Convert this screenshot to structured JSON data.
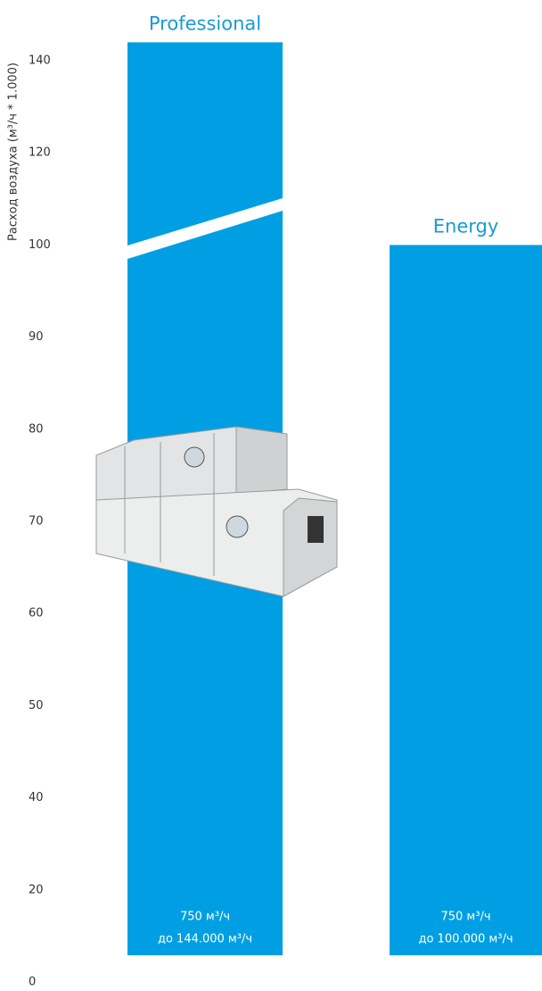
{
  "chart_data": {
    "type": "bar",
    "y_label": "Расход воздуха (м³/ч * 1.000)",
    "categories": [
      "Professional",
      "Energy"
    ],
    "values": [
      144,
      100
    ],
    "value_labels": [
      "до 144.000 м³/ч",
      "до 100.000 м³/ч"
    ],
    "min_labels": [
      "750 м³/ч",
      "750 м³/ч"
    ],
    "color": "#009fe3",
    "label_color": "#1a9ad6",
    "ylim": [
      0,
      144
    ],
    "yticks": [
      0,
      20,
      40,
      50,
      60,
      70,
      80,
      90,
      100,
      120,
      140
    ]
  }
}
